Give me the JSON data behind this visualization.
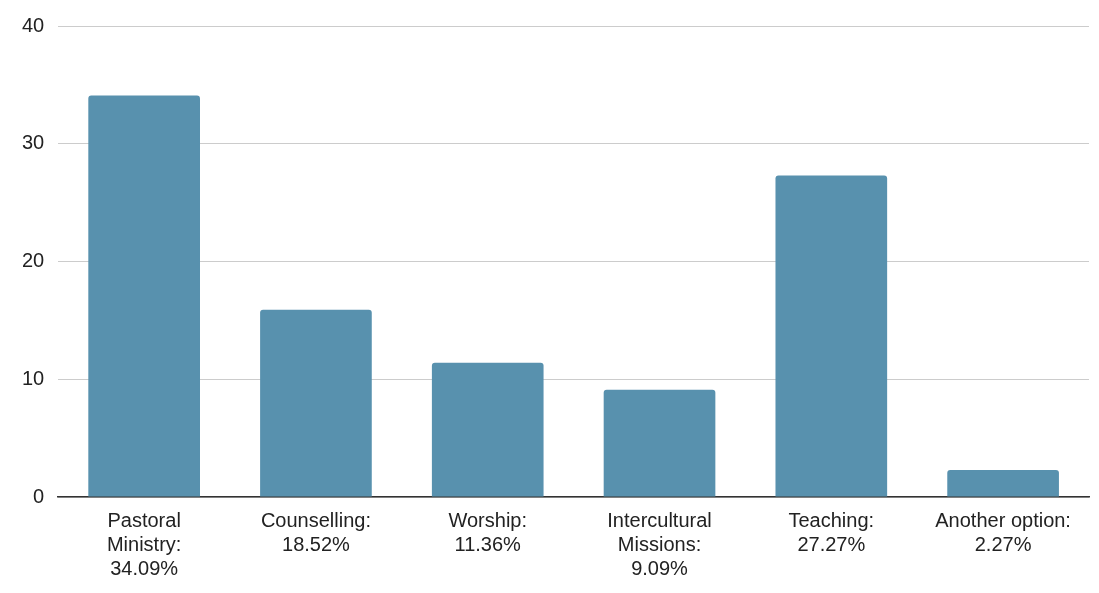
{
  "chart_data": {
    "type": "bar",
    "categories": [
      "Pastoral Ministry: 34.09%",
      "Counselling: 18.52%",
      "Worship: 11.36%",
      "Intercultural Missions: 9.09%",
      "Teaching: 27.27%",
      "Another option: 2.27%"
    ],
    "values": [
      34.1,
      15.9,
      11.4,
      9.1,
      27.3,
      2.3
    ],
    "color": "#5891ae",
    "ylim": [
      0,
      40
    ],
    "yticks": [
      0,
      10,
      20,
      30,
      40
    ],
    "grid": "y",
    "legend": false
  }
}
